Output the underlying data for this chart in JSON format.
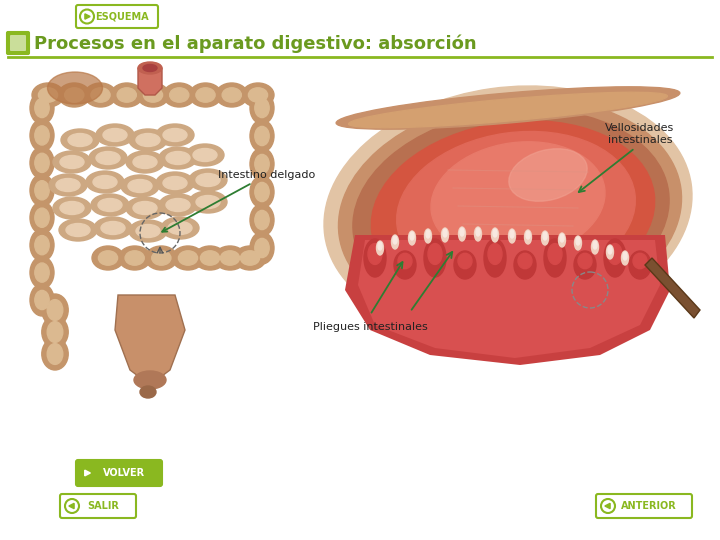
{
  "bg_color": "#ffffff",
  "title": "Procesos en el aparato digestivo: absorción",
  "title_color": "#6a9a1f",
  "title_fontsize": 13,
  "header_line_color": "#8ab820",
  "esquema_text": "ESQUEMA",
  "btn_color": "#8ab820",
  "volver_text": "VOLVER",
  "salir_text": "SALIR",
  "anterior_text": "ANTERIOR",
  "label_intestino": "Intestino delgado",
  "label_pliegues": "Pliegues intestinales",
  "label_vellosidades": "Vellosidades\nintestinales",
  "arrow_color": "#2e7d32",
  "label_fontsize": 8
}
